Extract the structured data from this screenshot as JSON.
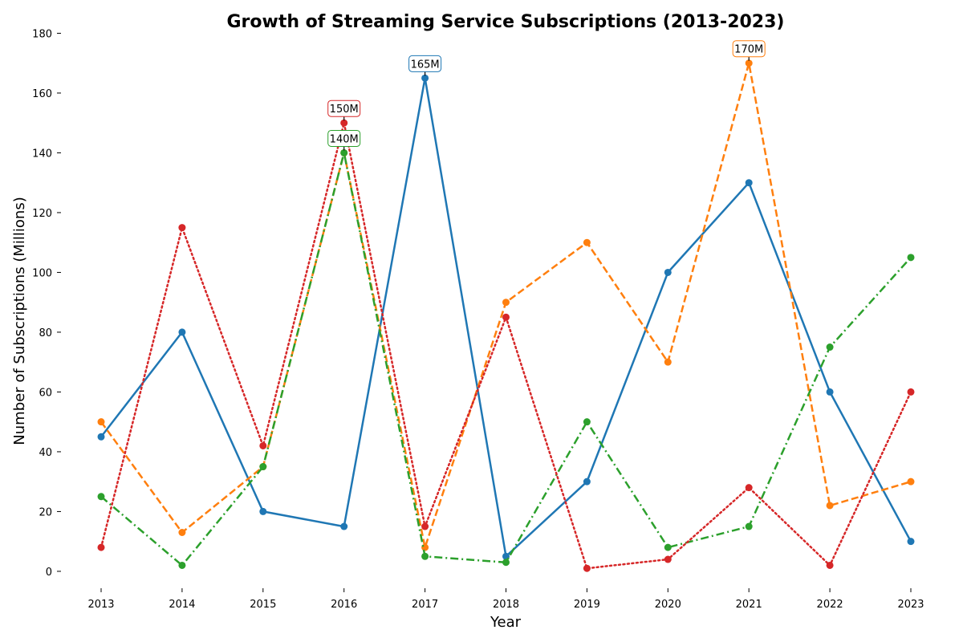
{
  "chart_data": {
    "type": "line",
    "title": "Growth of Streaming Service Subscriptions (2013-2023)",
    "xlabel": "Year",
    "ylabel": "Number of Subscriptions (Millions)",
    "x": [
      2013,
      2014,
      2015,
      2016,
      2017,
      2018,
      2019,
      2020,
      2021,
      2022,
      2023
    ],
    "ylim": [
      -7,
      182
    ],
    "yticks": [
      0,
      20,
      40,
      60,
      80,
      100,
      120,
      140,
      160,
      180
    ],
    "grid": false,
    "legend": "none",
    "series": [
      {
        "color": "#1f77b4",
        "dash": "solid",
        "values": [
          45,
          80,
          20,
          15,
          165,
          5,
          30,
          100,
          130,
          60,
          10
        ]
      },
      {
        "color": "#ff7f0e",
        "dash": "dashed",
        "values": [
          50,
          13,
          35,
          140,
          8,
          90,
          110,
          70,
          170,
          22,
          30
        ]
      },
      {
        "color": "#2ca02c",
        "dash": "dashdot",
        "values": [
          25,
          2,
          35,
          140,
          5,
          3,
          50,
          8,
          15,
          75,
          105
        ]
      },
      {
        "color": "#d62728",
        "dash": "dotted",
        "values": [
          8,
          115,
          42,
          150,
          15,
          85,
          1,
          4,
          28,
          2,
          60
        ]
      }
    ],
    "annotations": [
      {
        "text": "165M",
        "x": 2017,
        "y": 165,
        "color": "#1f77b4"
      },
      {
        "text": "170M",
        "x": 2021,
        "y": 170,
        "color": "#ff7f0e"
      },
      {
        "text": "150M",
        "x": 2016,
        "y": 150,
        "color": "#d62728"
      },
      {
        "text": "140M",
        "x": 2016,
        "y": 140,
        "color": "#2ca02c"
      }
    ]
  }
}
